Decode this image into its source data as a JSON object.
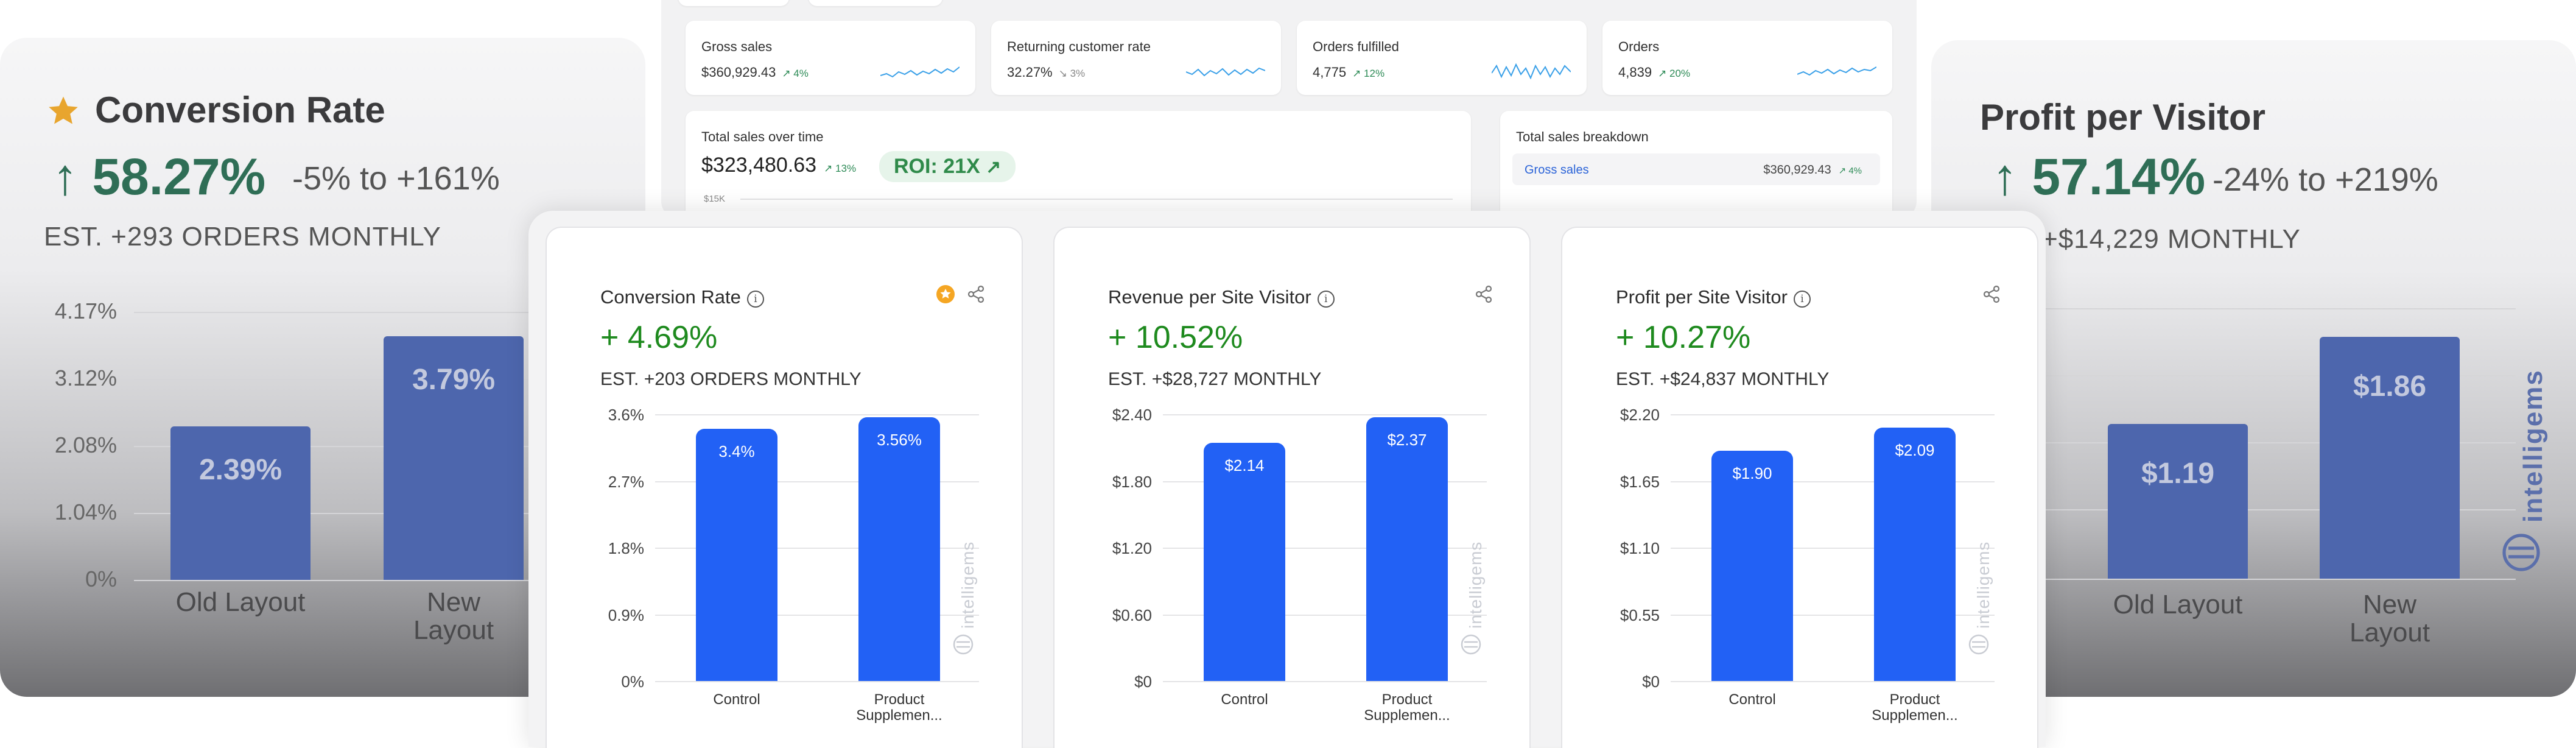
{
  "background_left": {
    "title": "Conversion Rate",
    "rate": "↑ 58.27%",
    "range": "-5% to +161%",
    "estimate": "EST. +293 ORDERS MONTHLY",
    "ticks": [
      "4.17%",
      "3.12%",
      "2.08%",
      "1.04%",
      "0%"
    ],
    "bars": [
      {
        "label": "2.39%",
        "category": "Old Layout",
        "value": 2.39
      },
      {
        "label": "3.79%",
        "category": "New Layout",
        "value": 3.79
      }
    ],
    "ymax": 4.17
  },
  "background_right": {
    "title": "Profit per Visitor",
    "rate": "↑ 57.14%",
    "range": "-24% to +219%",
    "estimate": "+$14,229 MONTHLY",
    "bars": [
      {
        "label": "$1.19",
        "category": "Old Layout",
        "value": 1.19
      },
      {
        "label": "$1.86",
        "category": "New Layout",
        "value": 1.86
      }
    ],
    "ymax": 2.08,
    "watermark": "intelligems"
  },
  "dashboard": {
    "kpis": [
      {
        "title": "Gross sales",
        "value": "$360,929.43",
        "delta": "↗ 4%"
      },
      {
        "title": "Returning customer rate",
        "value": "32.27%",
        "delta": "↘ 3%"
      },
      {
        "title": "Orders fulfilled",
        "value": "4,775",
        "delta": "↗ 12%"
      },
      {
        "title": "Orders",
        "value": "4,839",
        "delta": "↗ 20%"
      }
    ],
    "sales_title": "Total sales over time",
    "sales_value": "$323,480.63",
    "sales_delta": "↗ 13%",
    "roi": "ROI: 21X",
    "sales_tick": "$15K",
    "breakdown_title": "Total sales breakdown",
    "breakdown_row_label": "Gross sales",
    "breakdown_row_value": "$360,929.43",
    "breakdown_row_delta": "↗ 4%"
  },
  "cards": [
    {
      "title": "Conversion Rate",
      "lift": "+ 4.69%",
      "estimate": "EST. +203 ORDERS MONTHLY",
      "starred": true,
      "ticks": [
        "3.6%",
        "2.7%",
        "1.8%",
        "0.9%",
        "0%"
      ],
      "ymax": 3.6,
      "bars": [
        {
          "label": "3.4%",
          "value": 3.4,
          "category": "Control"
        },
        {
          "label": "3.56%",
          "value": 3.56,
          "category": "Product Supplemen..."
        }
      ]
    },
    {
      "title": "Revenue per Site Visitor",
      "lift": "+ 10.52%",
      "estimate": "EST. +$28,727 MONTHLY",
      "starred": false,
      "ticks": [
        "$2.40",
        "$1.80",
        "$1.20",
        "$0.60",
        "$0"
      ],
      "ymax": 2.4,
      "bars": [
        {
          "label": "$2.14",
          "value": 2.14,
          "category": "Control"
        },
        {
          "label": "$2.37",
          "value": 2.37,
          "category": "Product Supplemen..."
        }
      ]
    },
    {
      "title": "Profit per Site Visitor",
      "lift": "+ 10.27%",
      "estimate": "EST. +$24,837 MONTHLY",
      "starred": false,
      "ticks": [
        "$2.20",
        "$1.65",
        "$1.10",
        "$0.55",
        "$0"
      ],
      "ymax": 2.2,
      "bars": [
        {
          "label": "$1.90",
          "value": 1.9,
          "category": "Control"
        },
        {
          "label": "$2.09",
          "value": 2.09,
          "category": "Product Supplemen..."
        }
      ]
    }
  ],
  "watermark": "intelligems",
  "colors": {
    "bar": "#2261f5",
    "lift": "#1e8a1e",
    "star": "#f5a623",
    "bg_bar": "#4d66ad"
  }
}
